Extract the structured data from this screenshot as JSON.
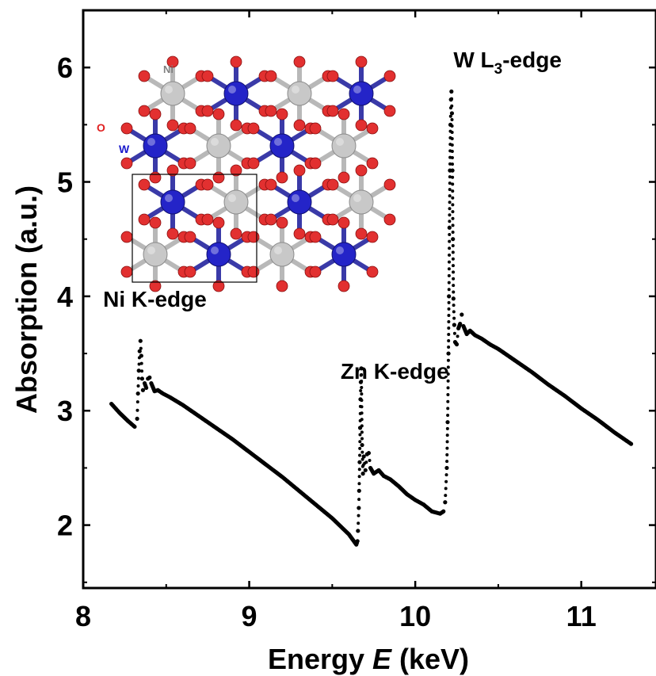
{
  "chart_data": {
    "type": "scatter",
    "title": "",
    "xlabel_prefix": "Energy ",
    "xlabel_var": "E",
    "xlabel_suffix": " (keV)",
    "ylabel": "Absorption (a.u.)",
    "xlim": [
      8.0,
      11.45
    ],
    "ylim": [
      1.45,
      6.5
    ],
    "x_ticks": [
      8,
      9,
      10,
      11
    ],
    "y_ticks": [
      2,
      3,
      4,
      5,
      6
    ],
    "x_tick_labels": [
      "8",
      "9",
      "10",
      "11"
    ],
    "y_tick_labels": [
      "2",
      "3",
      "4",
      "5",
      "6"
    ],
    "x_minor_step": 0.5,
    "y_minor_step": 0.5,
    "grid": false,
    "marker_color": "#000000",
    "annotations": [
      {
        "text": "Ni K-edge",
        "x": 8.12,
        "y": 3.91
      },
      {
        "text": "Zn K-edge",
        "x": 9.55,
        "y": 3.28
      }
    ],
    "w_label": {
      "main": "W L",
      "sub": "3",
      "tail": "-edge",
      "x": 10.23,
      "y": 6.0
    },
    "series": [
      {
        "points": [
          [
            8.17,
            3.06
          ],
          [
            8.22,
            2.98
          ],
          [
            8.27,
            2.91
          ],
          [
            8.31,
            2.86
          ],
          [
            8.325,
            2.93
          ],
          [
            8.33,
            3.15
          ],
          [
            8.335,
            3.35
          ],
          [
            8.34,
            3.52
          ],
          [
            8.345,
            3.61
          ],
          [
            8.35,
            3.48
          ],
          [
            8.355,
            3.28
          ],
          [
            8.36,
            3.18
          ],
          [
            8.37,
            3.24
          ],
          [
            8.38,
            3.2
          ],
          [
            8.39,
            3.28
          ],
          [
            8.4,
            3.29
          ],
          [
            8.41,
            3.24
          ],
          [
            8.43,
            3.17
          ],
          [
            8.45,
            3.18
          ],
          [
            8.48,
            3.15
          ],
          [
            8.52,
            3.12
          ],
          [
            8.6,
            3.05
          ],
          [
            8.7,
            2.95
          ],
          [
            8.8,
            2.85
          ],
          [
            8.9,
            2.75
          ],
          [
            9.0,
            2.64
          ],
          [
            9.1,
            2.53
          ],
          [
            9.2,
            2.42
          ],
          [
            9.3,
            2.3
          ],
          [
            9.4,
            2.18
          ],
          [
            9.5,
            2.06
          ],
          [
            9.6,
            1.92
          ],
          [
            9.645,
            1.83
          ],
          [
            9.652,
            1.86
          ],
          [
            9.655,
            1.95
          ],
          [
            9.66,
            2.15
          ],
          [
            9.662,
            2.3
          ],
          [
            9.665,
            2.55
          ],
          [
            9.668,
            2.85
          ],
          [
            9.67,
            3.1
          ],
          [
            9.672,
            3.25
          ],
          [
            9.675,
            3.37
          ],
          [
            9.68,
            2.7
          ],
          [
            9.685,
            2.45
          ],
          [
            9.69,
            2.6
          ],
          [
            9.7,
            2.48
          ],
          [
            9.71,
            2.62
          ],
          [
            9.72,
            2.63
          ],
          [
            9.73,
            2.5
          ],
          [
            9.75,
            2.45
          ],
          [
            9.78,
            2.48
          ],
          [
            9.81,
            2.43
          ],
          [
            9.85,
            2.4
          ],
          [
            9.9,
            2.34
          ],
          [
            9.95,
            2.27
          ],
          [
            10.0,
            2.22
          ],
          [
            10.05,
            2.18
          ],
          [
            10.1,
            2.12
          ],
          [
            10.15,
            2.1
          ],
          [
            10.17,
            2.12
          ],
          [
            10.18,
            2.2
          ],
          [
            10.19,
            2.5
          ],
          [
            10.195,
            2.9
          ],
          [
            10.2,
            3.5
          ],
          [
            10.203,
            4.0
          ],
          [
            10.206,
            4.6
          ],
          [
            10.209,
            5.1
          ],
          [
            10.212,
            5.5
          ],
          [
            10.215,
            5.72
          ],
          [
            10.218,
            5.79
          ],
          [
            10.221,
            5.6
          ],
          [
            10.224,
            5.1
          ],
          [
            10.227,
            4.5
          ],
          [
            10.23,
            3.98
          ],
          [
            10.235,
            3.75
          ],
          [
            10.24,
            3.6
          ],
          [
            10.25,
            3.58
          ],
          [
            10.26,
            3.72
          ],
          [
            10.27,
            3.76
          ],
          [
            10.28,
            3.84
          ],
          [
            10.29,
            3.74
          ],
          [
            10.31,
            3.67
          ],
          [
            10.33,
            3.7
          ],
          [
            10.36,
            3.66
          ],
          [
            10.4,
            3.63
          ],
          [
            10.45,
            3.58
          ],
          [
            10.5,
            3.54
          ],
          [
            10.6,
            3.44
          ],
          [
            10.7,
            3.34
          ],
          [
            10.8,
            3.23
          ],
          [
            10.9,
            3.13
          ],
          [
            11.0,
            3.02
          ],
          [
            11.1,
            2.92
          ],
          [
            11.2,
            2.81
          ],
          [
            11.3,
            2.71
          ]
        ]
      }
    ]
  },
  "inset": {
    "atom_labels": [
      {
        "text": "Ni",
        "color": "#808080"
      },
      {
        "text": "O",
        "color": "#e02020"
      },
      {
        "text": "W",
        "color": "#1a1acc"
      }
    ],
    "colors": {
      "ni": "#c8c8c8",
      "w": "#2424c8",
      "o": "#e23030",
      "bond_ni": "#b8b8b8",
      "bond_w": "#3a3aa8",
      "bond_o": "#d83030"
    }
  }
}
